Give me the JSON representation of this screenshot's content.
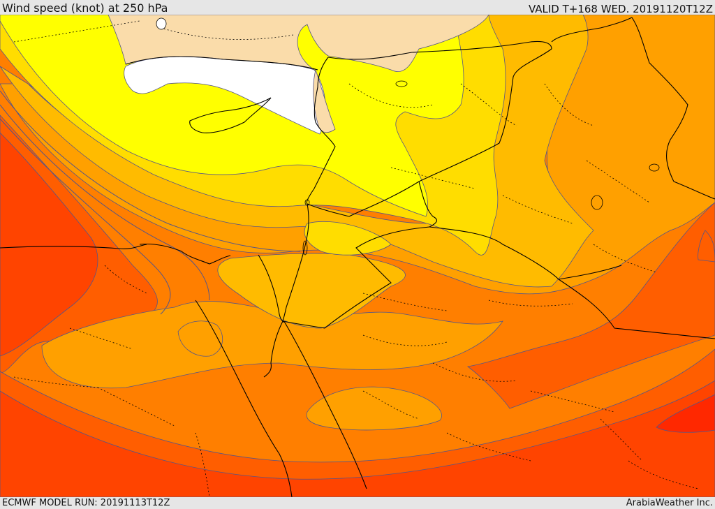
{
  "header": {
    "title": "Wind speed (knot) at 250 hPa",
    "valid": "VALID T+168 WED. 20191120T12Z"
  },
  "footer": {
    "model_run": "ECMWF MODEL RUN: 20191113T12Z",
    "credit": "ArabiaWeather Inc."
  },
  "map": {
    "variable": "wind speed at 250 hPa",
    "shading_colors": {
      "no_data_land": "#fadcaa",
      "lowest_white": "#ffffff",
      "yellow": "#ffff00",
      "gold": "#ffdd00",
      "amber": "#ffbb00",
      "orange_light": "#ffa000",
      "orange": "#ff7f00",
      "orange_dark": "#ff5e00",
      "red_orange": "#ff4400",
      "red": "#ff2800"
    },
    "contour_color": "#555588",
    "border_color": "#000000"
  }
}
